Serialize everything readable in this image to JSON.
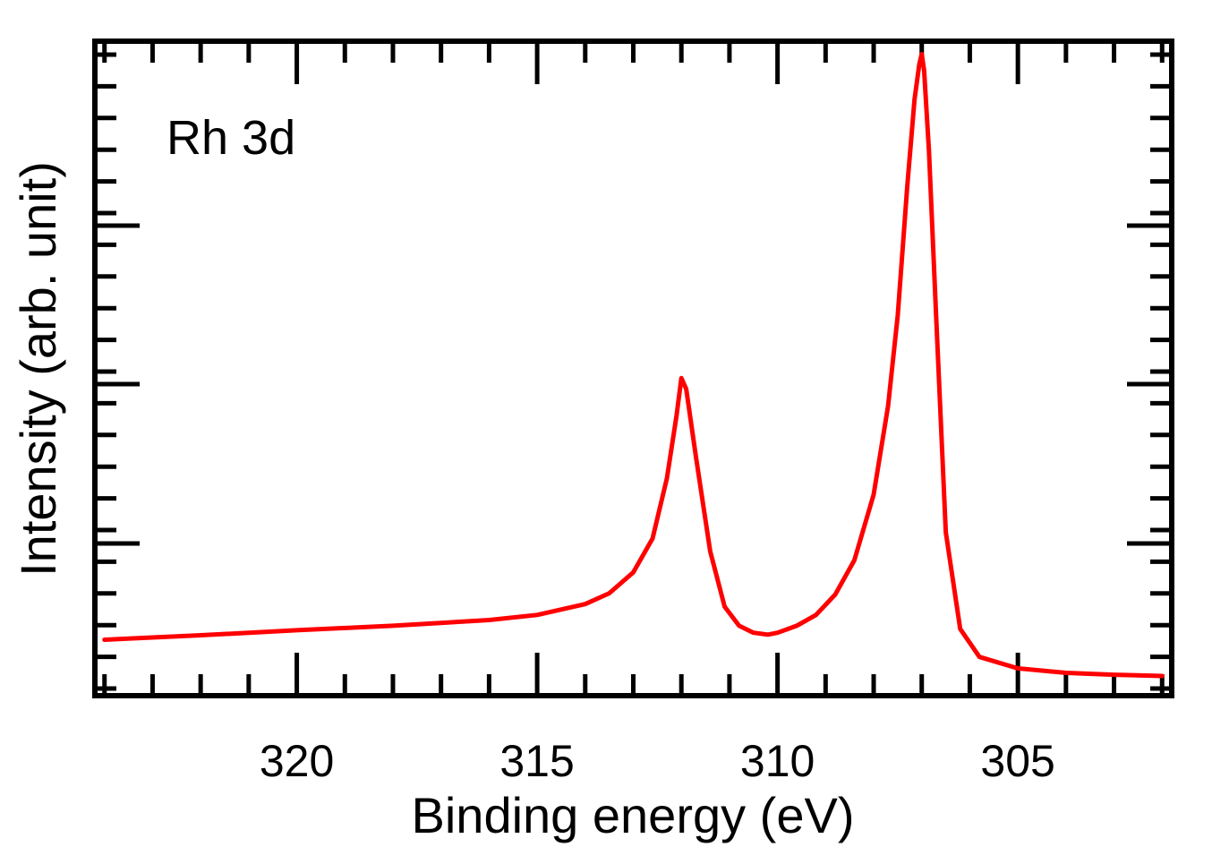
{
  "chart_data": {
    "type": "line",
    "title": "",
    "annotation": "Rh 3d",
    "xlabel": "Binding energy (eV)",
    "ylabel": "Intensity (arb. unit)",
    "xlim": [
      324.2,
      301.8
    ],
    "ylim": [
      0,
      100
    ],
    "x_axis_reversed": true,
    "x_ticks": [
      320,
      315,
      310,
      305
    ],
    "x_tick_labels": [
      "320",
      "315",
      "310",
      "305"
    ],
    "y_tick_labels_shown": false,
    "grid": false,
    "series": [
      {
        "name": "Rh 3d",
        "color": "#ff0000",
        "x": [
          324.0,
          322.0,
          320.0,
          318.0,
          316.0,
          315.0,
          314.0,
          313.5,
          313.0,
          312.6,
          312.3,
          312.1,
          312.0,
          311.9,
          311.7,
          311.4,
          311.1,
          310.8,
          310.5,
          310.2,
          310.0,
          309.6,
          309.2,
          308.8,
          308.4,
          308.0,
          307.7,
          307.5,
          307.3,
          307.15,
          307.05,
          307.0,
          306.95,
          306.85,
          306.7,
          306.5,
          306.2,
          305.8,
          305.0,
          304.0,
          303.0,
          302.0
        ],
        "values": [
          7.1,
          7.8,
          8.6,
          9.3,
          10.2,
          11.0,
          12.7,
          14.4,
          17.7,
          23.0,
          32.5,
          42.3,
          48.2,
          46.5,
          36.0,
          21.0,
          12.3,
          9.3,
          8.2,
          7.9,
          8.2,
          9.3,
          11.0,
          14.2,
          19.6,
          29.9,
          43.8,
          58.0,
          78.4,
          92.0,
          97.5,
          99.1,
          96.5,
          83.9,
          58.0,
          24.0,
          8.8,
          4.4,
          2.6,
          1.9,
          1.6,
          1.4
        ]
      }
    ]
  }
}
